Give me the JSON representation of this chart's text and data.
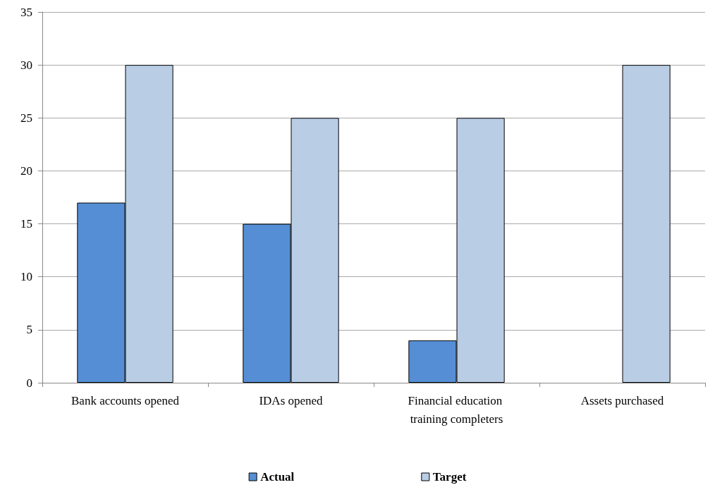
{
  "chart_data": {
    "type": "bar",
    "categories": [
      "Bank accounts opened",
      "IDAs opened",
      "Financial education training completers",
      "Assets purchased"
    ],
    "series": [
      {
        "name": "Actual",
        "color": "#558ed5",
        "values": [
          17,
          15,
          4,
          null
        ]
      },
      {
        "name": "Target",
        "color": "#b9cde5",
        "values": [
          30,
          25,
          25,
          30
        ]
      }
    ],
    "ylim": [
      0,
      35
    ],
    "yticks": [
      0,
      5,
      10,
      15,
      20,
      25,
      30,
      35
    ],
    "grid": "y",
    "legend": "bottom"
  }
}
